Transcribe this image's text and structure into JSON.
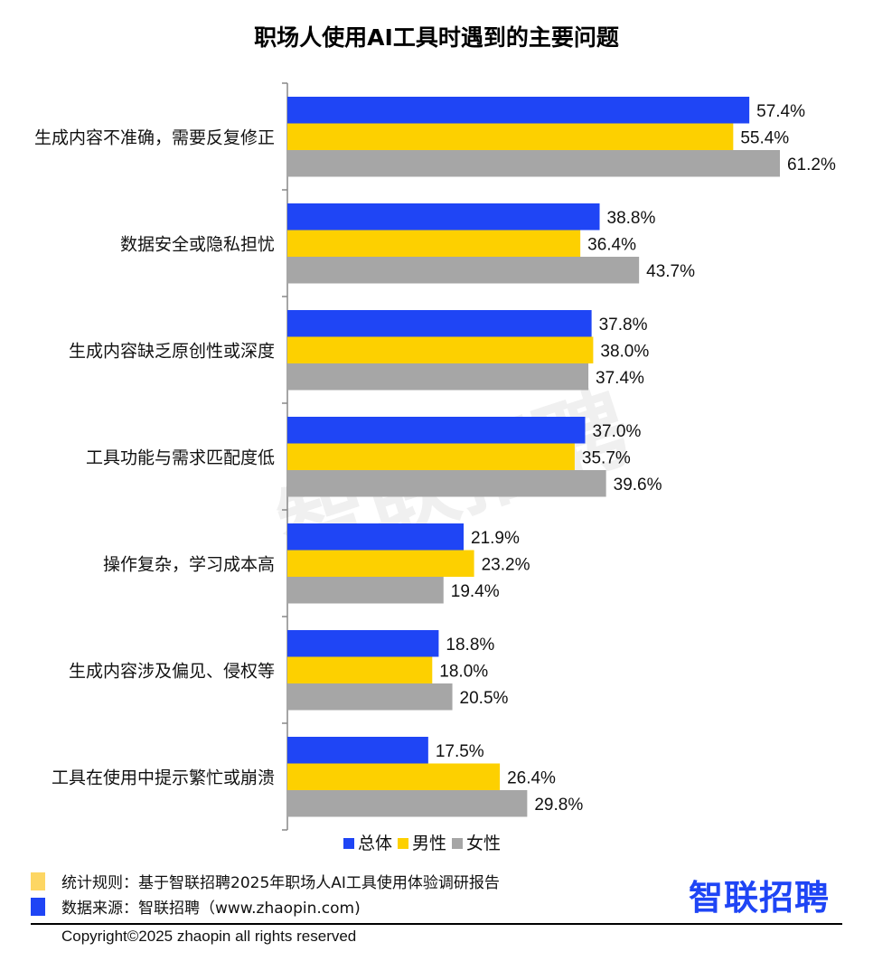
{
  "chart_data": {
    "type": "bar",
    "orientation": "horizontal",
    "title": "职场人使用AI工具时遇到的主要问题",
    "categories": [
      "生成内容不准确，需要反复修正",
      "数据安全或隐私担忧",
      "生成内容缺乏原创性或深度",
      "工具功能与需求匹配度低",
      "操作复杂，学习成本高",
      "生成内容涉及偏见、侵权等",
      "工具在使用中提示繁忙或崩溃"
    ],
    "series": [
      {
        "name": "总体",
        "color": "#1f45f5",
        "values": [
          57.4,
          38.8,
          37.8,
          37.0,
          21.9,
          18.8,
          17.5
        ]
      },
      {
        "name": "男性",
        "color": "#fdd000",
        "values": [
          55.4,
          36.4,
          38.0,
          35.7,
          23.2,
          18.0,
          26.4
        ]
      },
      {
        "name": "女性",
        "color": "#a6a6a6",
        "values": [
          61.2,
          43.7,
          37.4,
          39.6,
          19.4,
          20.5,
          29.8
        ]
      }
    ],
    "unit": "%",
    "xlim": [
      0,
      70
    ],
    "grid": false,
    "legend_position": "bottom"
  },
  "footer": {
    "rule_note": "统计规则：基于智联招聘2025年职场人AI工具使用体验调研报告",
    "rule_color": "#fdd663",
    "source_note": "数据来源：智联招聘（www.zhaopin.com)",
    "source_color": "#1f45f5",
    "copyright": "Copyright©2025 zhaopin all rights reserved",
    "logo": "智联招聘",
    "watermark": "智联招聘"
  }
}
